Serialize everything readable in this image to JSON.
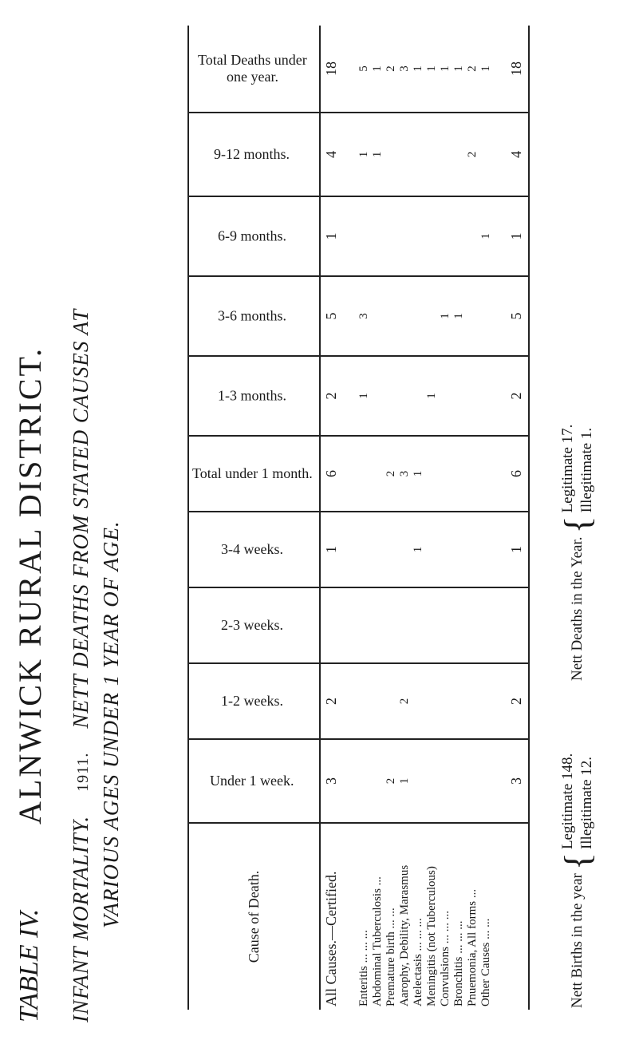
{
  "title": {
    "table_label": "TABLE IV.",
    "district": "ALNWICK RURAL DISTRICT.",
    "line1": "INFANT MORTALITY.",
    "year": "1911.",
    "line2": "NETT DEATHS FROM STATED CAUSES AT",
    "line3": "VARIOUS AGES UNDER 1 YEAR OF AGE."
  },
  "table": {
    "columns": [
      "Cause of Death.",
      "Under 1 week.",
      "1-2 weeks.",
      "2-3 weeks.",
      "3-4 weeks.",
      "Total under 1 month.",
      "1-3 months.",
      "3-6 months.",
      "6-9 months.",
      "9-12 months.",
      "Total Deaths under one year."
    ],
    "all_causes": {
      "label": "All Causes.—Certified.",
      "cells": [
        3,
        2,
        null,
        1,
        6,
        2,
        5,
        1,
        4,
        18
      ]
    },
    "rows": [
      {
        "label": "Enteritis ... ... ...",
        "cells": [
          null,
          null,
          null,
          null,
          null,
          1,
          3,
          null,
          1,
          5
        ]
      },
      {
        "label": "Abdominal Tuberculosis ...",
        "cells": [
          null,
          null,
          null,
          null,
          null,
          null,
          null,
          null,
          1,
          1
        ]
      },
      {
        "label": "Premature birth ... ...",
        "cells": [
          2,
          null,
          null,
          null,
          2,
          null,
          null,
          null,
          null,
          2
        ]
      },
      {
        "label": "Aarophy, Debility, Marasmus",
        "cells": [
          1,
          2,
          null,
          null,
          3,
          null,
          null,
          null,
          null,
          3
        ]
      },
      {
        "label": "Atelectasis ... ... ...",
        "cells": [
          null,
          null,
          null,
          1,
          1,
          null,
          null,
          null,
          null,
          1
        ]
      },
      {
        "label": "Meningitis (not Tuberculous)",
        "cells": [
          null,
          null,
          null,
          null,
          null,
          1,
          null,
          null,
          null,
          1
        ]
      },
      {
        "label": "Convulsions ... ... ...",
        "cells": [
          null,
          null,
          null,
          null,
          null,
          null,
          1,
          null,
          null,
          1
        ]
      },
      {
        "label": "Bronchitis ... ... ...",
        "cells": [
          null,
          null,
          null,
          null,
          null,
          null,
          1,
          null,
          null,
          1
        ]
      },
      {
        "label": "Pnuemonia, All forms ...",
        "cells": [
          null,
          null,
          null,
          null,
          null,
          null,
          null,
          null,
          2,
          2
        ]
      },
      {
        "label": "Other Causes ... ...",
        "cells": [
          null,
          null,
          null,
          null,
          null,
          null,
          null,
          1,
          null,
          1
        ]
      }
    ],
    "totals": [
      3,
      2,
      null,
      1,
      6,
      2,
      5,
      1,
      4,
      18
    ]
  },
  "footnote": {
    "births": {
      "label": "Nett Births in the year",
      "legitimate": "Legitimate 148.",
      "illegitimate": "Illegitimate 12."
    },
    "deaths": {
      "label": "Nett Deaths in the Year.",
      "legitimate": "Legitimate 17.",
      "illegitimate": "Illegitimate 1."
    }
  }
}
